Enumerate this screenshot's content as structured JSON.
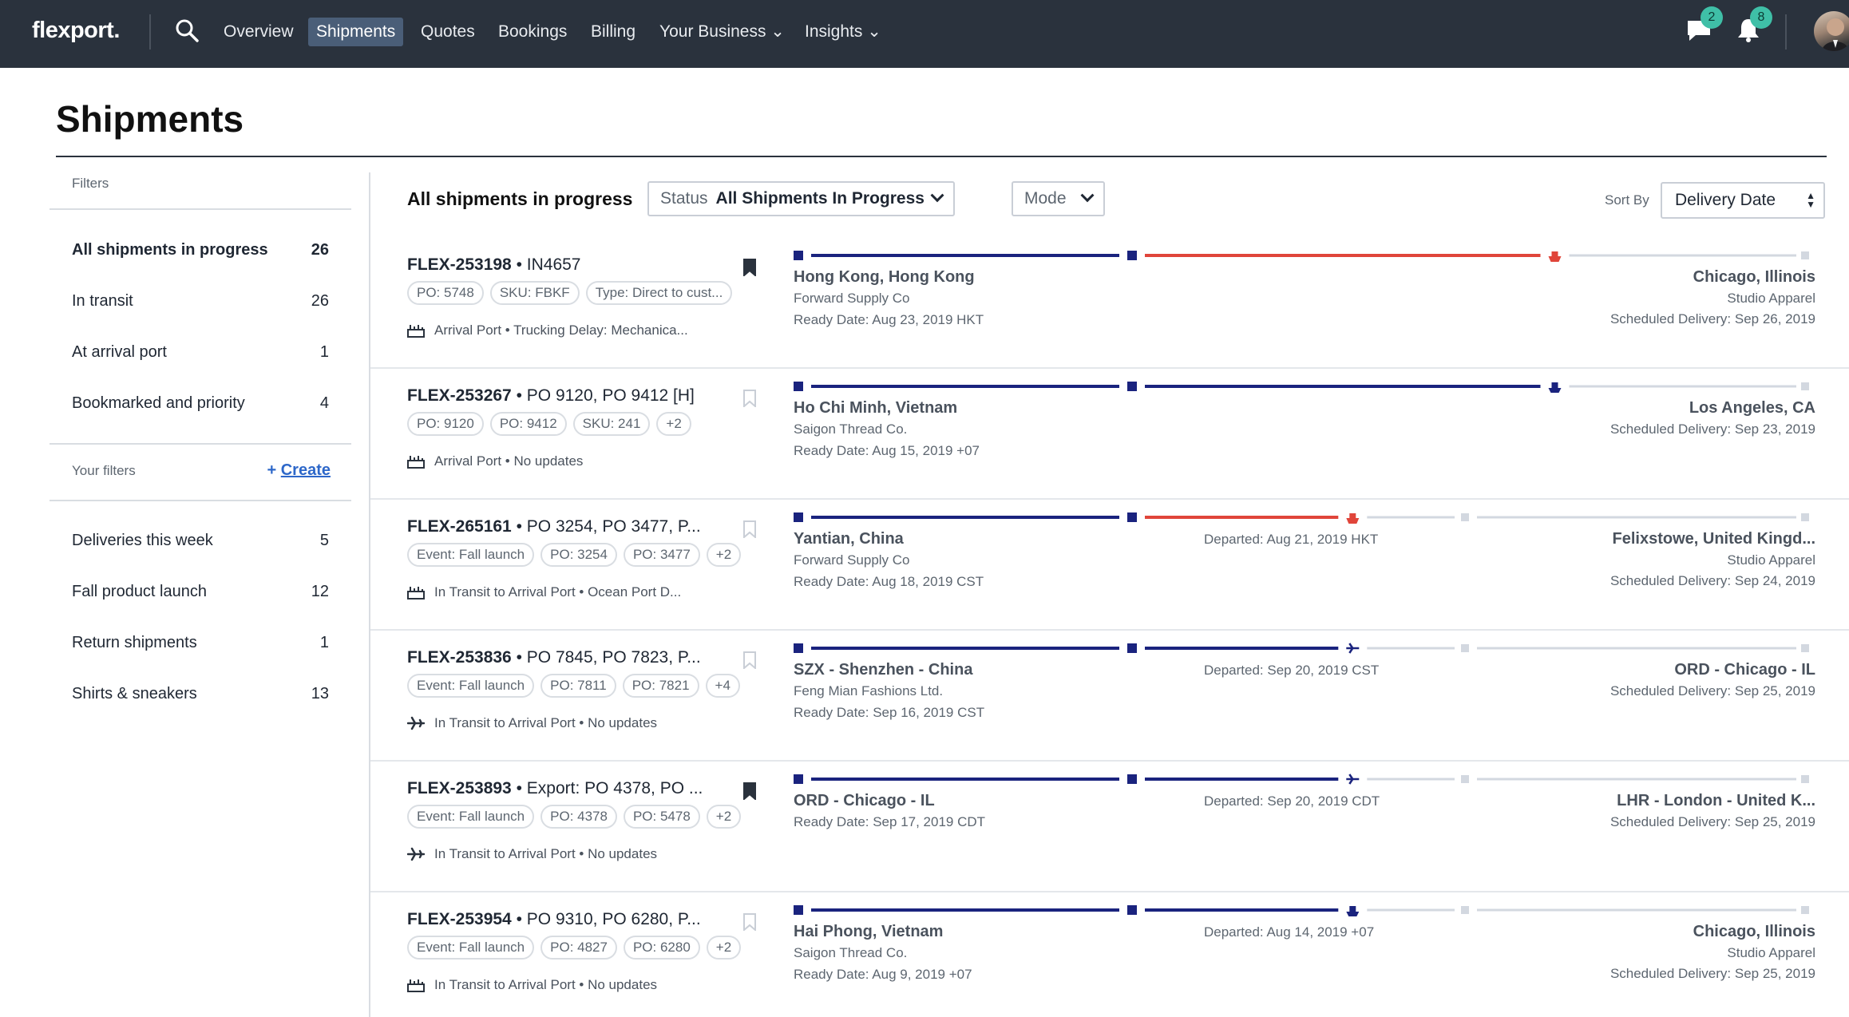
{
  "nav": {
    "logo": "flexport.",
    "items": [
      {
        "label": "Overview"
      },
      {
        "label": "Shipments"
      },
      {
        "label": "Quotes"
      },
      {
        "label": "Bookings"
      },
      {
        "label": "Billing"
      },
      {
        "label": "Your Business ⌄"
      },
      {
        "label": "Insights ⌄"
      }
    ],
    "messages_count": "2",
    "notifications_count": "8"
  },
  "page": {
    "title": "Shipments"
  },
  "sidebar": {
    "filters_caption": "Filters",
    "items": [
      {
        "label": "All shipments in progress",
        "count": "26"
      },
      {
        "label": "In transit",
        "count": "26"
      },
      {
        "label": "At arrival port",
        "count": "1"
      },
      {
        "label": "Bookmarked and priority",
        "count": "4"
      }
    ],
    "your_filters_caption": "Your filters",
    "create_label": "Create",
    "custom": [
      {
        "label": "Deliveries this week",
        "count": "5"
      },
      {
        "label": "Fall product launch",
        "count": "12"
      },
      {
        "label": "Return shipments",
        "count": "1"
      },
      {
        "label": "Shirts & sneakers",
        "count": "13"
      }
    ]
  },
  "toolbar": {
    "heading": "All shipments in progress",
    "status_label": "Status",
    "status_value": "All Shipments In Progress",
    "mode_label": "Mode",
    "sort_by_label": "Sort By",
    "sort_value": "Delivery Date"
  },
  "colors": {
    "nav_bg": "#2a323d",
    "primary": "#1a237e",
    "alert": "#e0453a",
    "pending": "#d3d8e0",
    "badge": "#3fbfa7"
  },
  "shipments": [
    {
      "id": "FLEX-253198",
      "ref": " • IN4657",
      "bookmarked": true,
      "tags": [
        "PO: 5748",
        "SKU: FBKF",
        "Type: Direct to cust..."
      ],
      "status_icon": "port-icon",
      "status": "Arrival Port • Trucking Delay: Mechanica...",
      "track_icon": "ship-alert-icon",
      "progress": 0.75,
      "alert": true,
      "origin": "Hong Kong, Hong Kong",
      "origin_company": "Forward Supply Co",
      "ready": "Ready Date: Aug 23, 2019 HKT",
      "mid": "",
      "dest": "Chicago, Illinois",
      "dest_company": "Studio Apparel",
      "delivery": "Scheduled Delivery: Sep 26, 2019"
    },
    {
      "id": "FLEX-253267",
      "ref": " • PO 9120, PO 9412 [H]",
      "bookmarked": false,
      "tags": [
        "PO: 9120",
        "PO: 9412",
        "SKU: 241",
        "+2"
      ],
      "status_icon": "port-icon",
      "status": "Arrival Port • No updates",
      "track_icon": "ship-icon",
      "progress": 0.75,
      "alert": false,
      "origin": "Ho Chi Minh, Vietnam",
      "origin_company": "Saigon Thread Co.",
      "ready": "Ready Date: Aug 15, 2019 +07",
      "mid": "",
      "dest": "Los Angeles, CA",
      "dest_company": "",
      "delivery": "Scheduled Delivery: Sep 23, 2019"
    },
    {
      "id": "FLEX-265161",
      "ref": " • PO 3254, PO 3477, P...",
      "bookmarked": false,
      "tags": [
        "Event: Fall launch",
        "PO: 3254",
        "PO: 3477",
        "+2"
      ],
      "status_icon": "port-icon",
      "status": "In Transit to Arrival Port • Ocean Port D...",
      "track_icon": "ship-alert-icon",
      "progress": 0.55,
      "alert": true,
      "origin": "Yantian, China",
      "origin_company": "Forward Supply Co",
      "ready": "Ready Date: Aug 18, 2019 CST",
      "mid": "Departed: Aug 21, 2019 HKT",
      "dest": "Felixstowe, United Kingd...",
      "dest_company": "Studio Apparel",
      "delivery": "Scheduled Delivery: Sep 24, 2019"
    },
    {
      "id": "FLEX-253836",
      "ref": " • PO 7845, PO 7823, P...",
      "bookmarked": false,
      "tags": [
        "Event: Fall launch",
        "PO: 7811",
        "PO: 7821",
        "+4"
      ],
      "status_icon": "plane-icon",
      "status": "In Transit to Arrival Port • No updates",
      "track_icon": "plane-icon",
      "progress": 0.55,
      "alert": false,
      "origin": "SZX - Shenzhen - China",
      "origin_company": "Feng Mian Fashions Ltd.",
      "ready": "Ready Date: Sep 16, 2019 CST",
      "mid": "Departed: Sep 20, 2019 CST",
      "dest": "ORD - Chicago - IL",
      "dest_company": "",
      "delivery": "Scheduled Delivery: Sep 25, 2019"
    },
    {
      "id": "FLEX-253893",
      "ref": " • Export: PO 4378, PO ...",
      "bookmarked": true,
      "tags": [
        "Event: Fall launch",
        "PO: 4378",
        "PO: 5478",
        "+2"
      ],
      "status_icon": "plane-icon",
      "status": "In Transit to Arrival Port • No updates",
      "track_icon": "plane-icon",
      "progress": 0.55,
      "alert": false,
      "origin": "ORD - Chicago - IL",
      "origin_company": "",
      "ready": "Ready Date: Sep 17, 2019 CDT",
      "mid": "Departed: Sep 20, 2019 CDT",
      "dest": "LHR - London - United K...",
      "dest_company": "",
      "delivery": "Scheduled Delivery: Sep 25, 2019"
    },
    {
      "id": "FLEX-253954",
      "ref": " • PO 9310, PO 6280, P...",
      "bookmarked": false,
      "tags": [
        "Event: Fall launch",
        "PO: 4827",
        "PO: 6280",
        "+2"
      ],
      "status_icon": "port-icon",
      "status": "In Transit to Arrival Port • No updates",
      "track_icon": "ship-icon",
      "progress": 0.55,
      "alert": false,
      "origin": "Hai Phong, Vietnam",
      "origin_company": "Saigon Thread Co.",
      "ready": "Ready Date: Aug 9, 2019 +07",
      "mid": "Departed: Aug 14, 2019 +07",
      "dest": "Chicago, Illinois",
      "dest_company": "Studio Apparel",
      "delivery": "Scheduled Delivery: Sep 25, 2019"
    }
  ]
}
